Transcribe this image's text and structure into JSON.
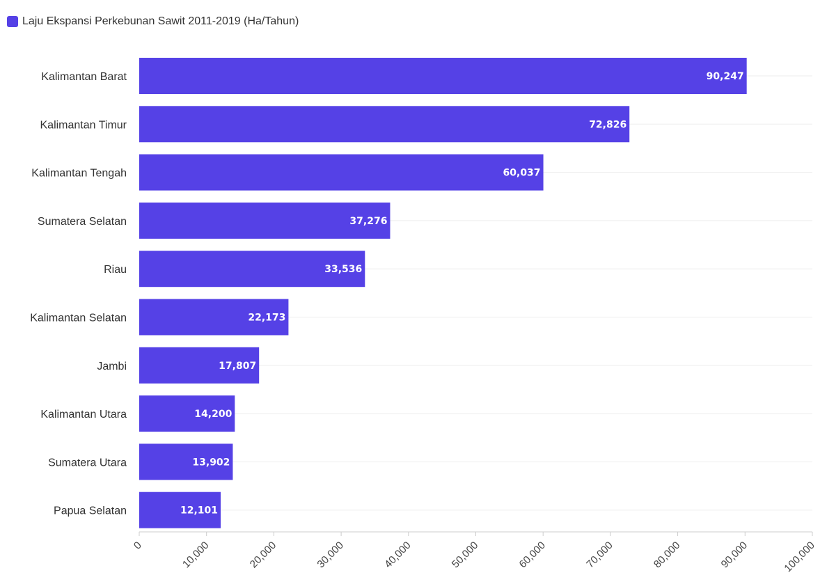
{
  "chart_data": {
    "type": "bar",
    "orientation": "horizontal",
    "categories": [
      "Kalimantan Barat",
      "Kalimantan Timur",
      "Kalimantan Tengah",
      "Sumatera Selatan",
      "Riau",
      "Kalimantan Selatan",
      "Jambi",
      "Kalimantan Utara",
      "Sumatera Utara",
      "Papua Selatan"
    ],
    "series": [
      {
        "name": "Laju Ekspansi Perkebunan Sawit 2011-2019 (Ha/Tahun)",
        "values": [
          90247,
          72826,
          60037,
          37276,
          33536,
          22173,
          17807,
          14200,
          13902,
          12101
        ],
        "labels": [
          "90,247",
          "72,826",
          "60,037",
          "37,276",
          "33,536",
          "22,173",
          "17,807",
          "14,200",
          "13,902",
          "12,101"
        ],
        "color": "#5541e6"
      }
    ],
    "xlim": [
      0,
      100000
    ],
    "ticks": [
      0,
      10000,
      20000,
      30000,
      40000,
      50000,
      60000,
      70000,
      80000,
      90000,
      100000
    ],
    "tick_labels": [
      "0",
      "10,000",
      "20,000",
      "30,000",
      "40,000",
      "50,000",
      "60,000",
      "70,000",
      "80,000",
      "90,000",
      "100,000"
    ],
    "grid": "horizontal",
    "legend_position": "top-left",
    "colors": {
      "bar": "#5541e6",
      "grid": "#eeeeee",
      "axis": "#cccccc"
    }
  }
}
